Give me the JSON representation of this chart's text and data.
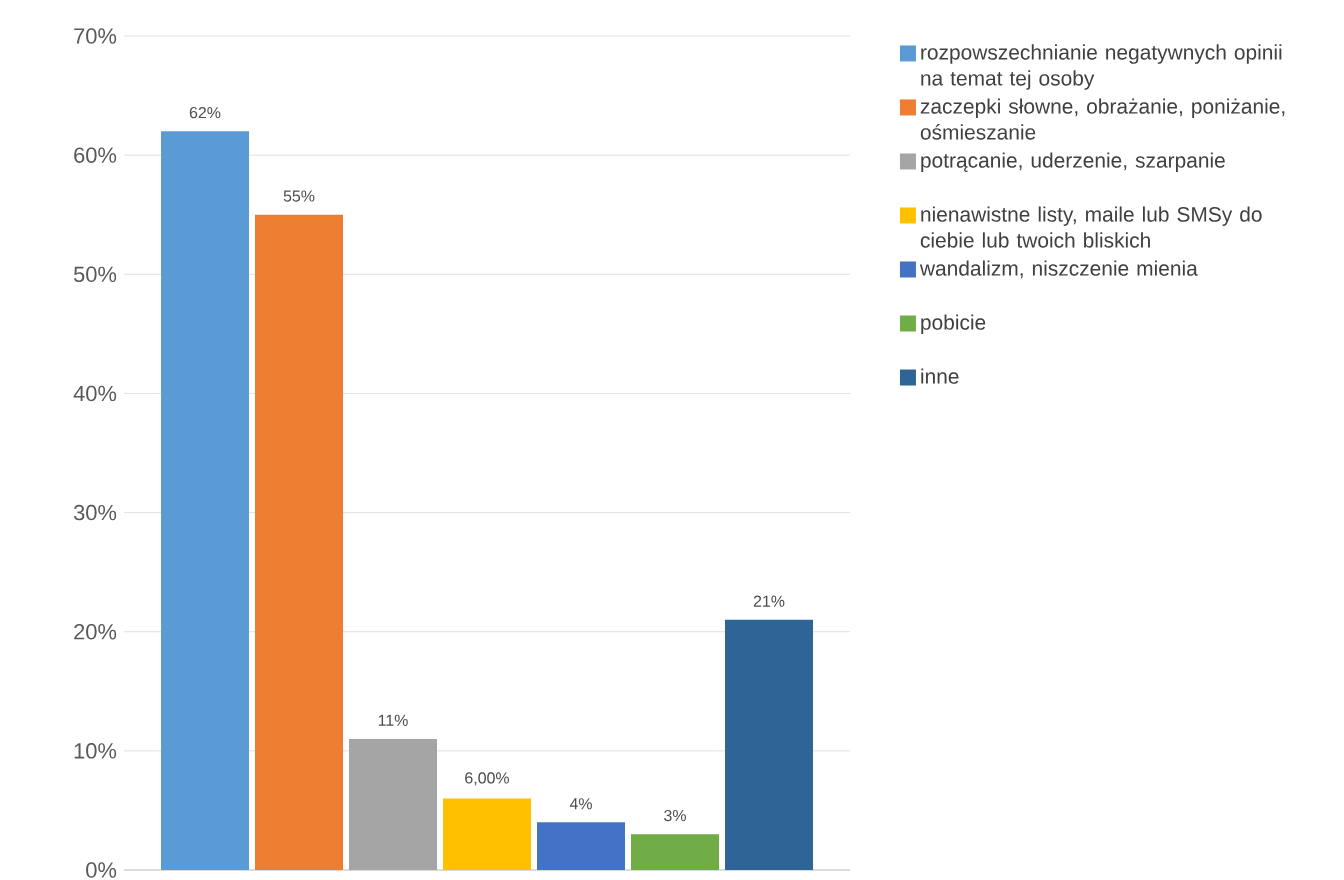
{
  "chart_data": {
    "type": "bar",
    "categories": [
      null
    ],
    "series": [
      {
        "name": "rozpowszechnianie negatywnych opinii na temat tej osoby",
        "color": "#5b9bd5",
        "values": [
          62
        ],
        "value_labels": [
          "62%"
        ]
      },
      {
        "name": "zaczepki słowne, obrażanie, poniżanie, ośmieszanie",
        "color": "#ed7d31",
        "values": [
          55
        ],
        "value_labels": [
          "55%"
        ]
      },
      {
        "name": "potrącanie, uderzenie, szarpanie",
        "color": "#a5a5a5",
        "values": [
          11
        ],
        "value_labels": [
          "11%"
        ]
      },
      {
        "name": "nienawistne listy, maile lub SMSy do ciebie lub twoich bliskich",
        "color": "#ffc000",
        "values": [
          6
        ],
        "value_labels": [
          "6,00%"
        ]
      },
      {
        "name": "wandalizm, niszczenie mienia",
        "color": "#4472c4",
        "values": [
          4
        ],
        "value_labels": [
          "4%"
        ]
      },
      {
        "name": "pobicie",
        "color": "#70ad47",
        "values": [
          3
        ],
        "value_labels": [
          "3%"
        ]
      },
      {
        "name": "inne",
        "color": "#2e6496",
        "values": [
          21
        ],
        "value_labels": [
          "21%"
        ]
      }
    ],
    "ylim": [
      0,
      70
    ],
    "yticks": [
      {
        "value": 0,
        "label": "0%"
      },
      {
        "value": 10,
        "label": "10%"
      },
      {
        "value": 20,
        "label": "20%"
      },
      {
        "value": 30,
        "label": "30%"
      },
      {
        "value": 40,
        "label": "40%"
      },
      {
        "value": 50,
        "label": "50%"
      },
      {
        "value": 60,
        "label": "60%"
      },
      {
        "value": 70,
        "label": "70%"
      }
    ],
    "grid": "y",
    "legend": "right"
  }
}
